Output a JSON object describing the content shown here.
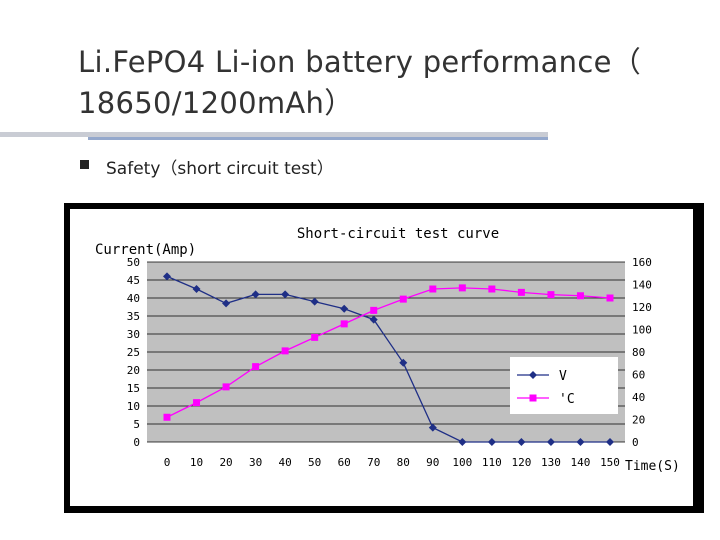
{
  "slide": {
    "title_line1": "Li.FePO4 Li-ion battery performance（",
    "title_line2": "18650/1200mAh）",
    "bullet_text": "Safety（short circuit test）"
  },
  "chart_data": {
    "type": "line",
    "title": "Short-circuit test curve",
    "ylabel": "Current(Amp)",
    "xlabel": "Time(S)",
    "x": [
      0,
      10,
      20,
      30,
      40,
      50,
      60,
      70,
      80,
      90,
      100,
      110,
      120,
      130,
      140,
      150
    ],
    "xticks": [
      "0",
      "10",
      "20",
      "30",
      "40",
      "50",
      "60",
      "70",
      "80",
      "90",
      "100",
      "110",
      "120",
      "130",
      "140",
      "150"
    ],
    "ylim": [
      0,
      50
    ],
    "yticks": [
      "0",
      "5",
      "10",
      "15",
      "20",
      "25",
      "30",
      "35",
      "40",
      "45",
      "50"
    ],
    "y2lim": [
      0,
      160
    ],
    "y2ticks": [
      "0",
      "20",
      "40",
      "60",
      "80",
      "100",
      "120",
      "140",
      "160"
    ],
    "grid": true,
    "legend_position": "right",
    "series": [
      {
        "name": "V",
        "axis": "left",
        "color": "#1f2f86",
        "marker": "diamond",
        "values": [
          46,
          42.5,
          38.5,
          41,
          41,
          39,
          37,
          34,
          22,
          4,
          0,
          0,
          0,
          0,
          0,
          0
        ]
      },
      {
        "name": "'C",
        "axis": "right",
        "color": "#ff00ff",
        "marker": "square",
        "values": [
          22,
          35,
          49,
          67,
          81,
          93,
          105,
          117,
          127,
          136,
          137,
          136,
          133,
          131,
          130,
          128
        ]
      }
    ]
  }
}
